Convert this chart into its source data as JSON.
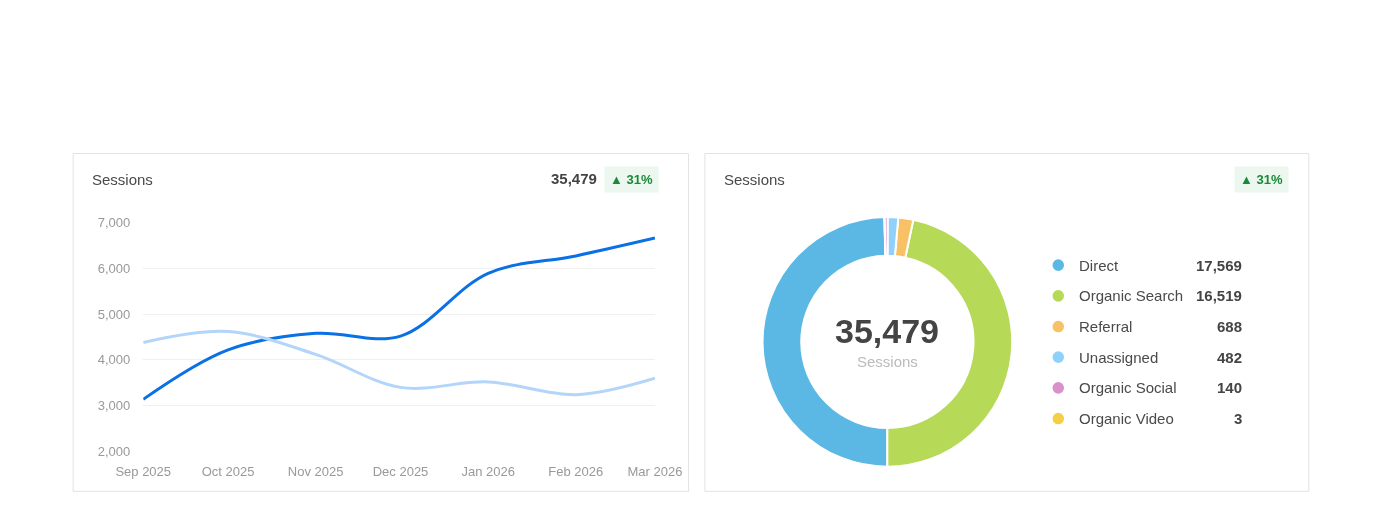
{
  "chart_data": [
    {
      "type": "line",
      "title": "Sessions",
      "annotations": [
        "35,479",
        "▲ 31%"
      ],
      "x": [
        "2025-09",
        "2025-10",
        "2025-11",
        "2025-12",
        "2026-01",
        "2026-02",
        "2026-03"
      ],
      "xlim": [
        "2025-09",
        "2026-03"
      ],
      "xticks": [
        {
          "value": "2025-09",
          "label": "Sep 2025"
        },
        {
          "value": "2025-10",
          "label": "Oct 2025"
        },
        {
          "value": "2025-11",
          "label": "Nov 2025"
        },
        {
          "value": "2025-12",
          "label": "Dec 2025"
        },
        {
          "value": "2026-01",
          "label": "Jan 2026"
        },
        {
          "value": "2026-02",
          "label": "Feb 2026"
        },
        {
          "value": "2026-03",
          "label": "Mar 2026"
        }
      ],
      "ylim": [
        2000,
        7000
      ],
      "yticks": [
        {
          "value": 2000,
          "label": "2,000"
        },
        {
          "value": 3000,
          "label": "3,000"
        },
        {
          "value": 4000,
          "label": "4,000"
        },
        {
          "value": 5000,
          "label": "5,000"
        },
        {
          "value": 6000,
          "label": "6,000"
        },
        {
          "value": 7000,
          "label": "7,000"
        }
      ],
      "grid": "y",
      "series": [
        {
          "color": "#0a70e6",
          "values": [
            3140,
            4220,
            4580,
            4520,
            5890,
            6270,
            6660
          ]
        },
        {
          "color": "#b4d5fa",
          "values": [
            4380,
            4620,
            4120,
            3400,
            3520,
            3240,
            3600
          ]
        }
      ]
    },
    {
      "type": "donut",
      "title": "Sessions",
      "annotations": [
        "▲ 31%",
        "35,479",
        "Sessions"
      ],
      "categories": [
        "Direct",
        "Organic Search",
        "Referral",
        "Unassigned",
        "Organic Social",
        "Organic Video"
      ],
      "values": [
        17569,
        16519,
        688,
        482,
        140,
        3
      ],
      "value_labels": [
        "17,569",
        "16,519",
        "688",
        "482",
        "140",
        "3"
      ],
      "colors": [
        "#5bb8e4",
        "#b6d957",
        "#f8c165",
        "#90d1fb",
        "#d891cb",
        "#f3cf45"
      ],
      "legend": "right"
    }
  ]
}
